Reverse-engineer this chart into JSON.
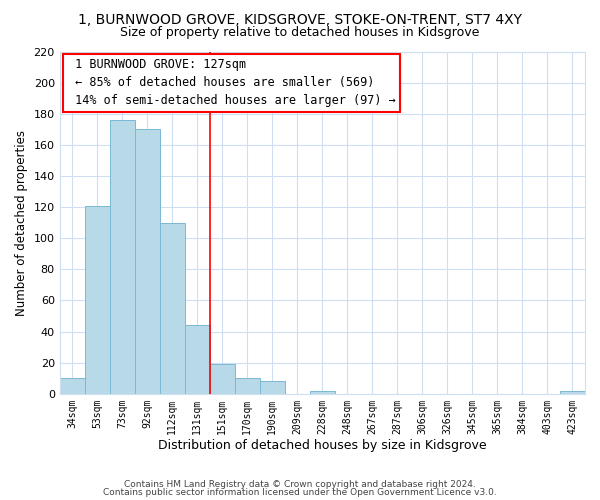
{
  "title": "1, BURNWOOD GROVE, KIDSGROVE, STOKE-ON-TRENT, ST7 4XY",
  "subtitle": "Size of property relative to detached houses in Kidsgrove",
  "xlabel": "Distribution of detached houses by size in Kidsgrove",
  "ylabel": "Number of detached properties",
  "bar_labels": [
    "34sqm",
    "53sqm",
    "73sqm",
    "92sqm",
    "112sqm",
    "131sqm",
    "151sqm",
    "170sqm",
    "190sqm",
    "209sqm",
    "228sqm",
    "248sqm",
    "267sqm",
    "287sqm",
    "306sqm",
    "326sqm",
    "345sqm",
    "365sqm",
    "384sqm",
    "403sqm",
    "423sqm"
  ],
  "bar_values": [
    10,
    121,
    176,
    170,
    110,
    44,
    19,
    10,
    8,
    0,
    2,
    0,
    0,
    0,
    0,
    0,
    0,
    0,
    0,
    0,
    2
  ],
  "bar_color": "#b8d9e8",
  "bar_edge_color": "#7ab8d4",
  "vline_x": 5.5,
  "vline_color": "red",
  "annotation_title": "1 BURNWOOD GROVE: 127sqm",
  "annotation_line1": "← 85% of detached houses are smaller (569)",
  "annotation_line2": "14% of semi-detached houses are larger (97) →",
  "ylim": [
    0,
    220
  ],
  "yticks": [
    0,
    20,
    40,
    60,
    80,
    100,
    120,
    140,
    160,
    180,
    200,
    220
  ],
  "footnote1": "Contains HM Land Registry data © Crown copyright and database right 2024.",
  "footnote2": "Contains public sector information licensed under the Open Government Licence v3.0.",
  "background_color": "#ffffff",
  "grid_color": "#cddff0",
  "title_fontsize": 10,
  "subtitle_fontsize": 9,
  "ylabel_fontsize": 8.5,
  "xlabel_fontsize": 9,
  "tick_fontsize": 7,
  "annotation_fontsize": 8.5,
  "footnote_fontsize": 6.5
}
